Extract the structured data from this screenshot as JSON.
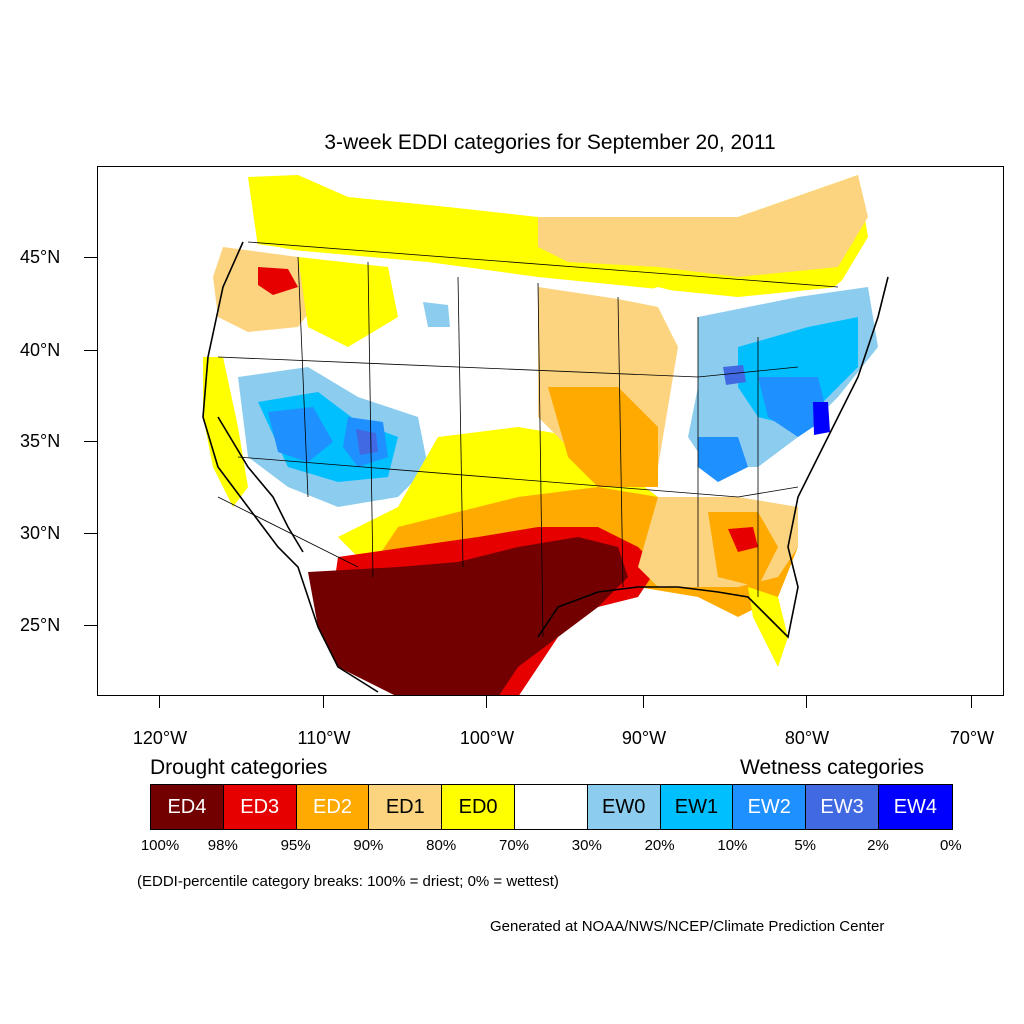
{
  "title": "3-week EDDI categories for September 20, 2011",
  "lat_labels": [
    "45°N",
    "40°N",
    "35°N",
    "30°N",
    "25°N"
  ],
  "lon_labels": [
    "120°W",
    "110°W",
    "100°W",
    "90°W",
    "80°W",
    "70°W"
  ],
  "legend": {
    "drought_heading": "Drought categories",
    "wetness_heading": "Wetness categories",
    "categories": [
      {
        "label": "ED4",
        "color": "#730000",
        "text_color": "#ffffff"
      },
      {
        "label": "ED3",
        "color": "#e60000",
        "text_color": "#ffffff"
      },
      {
        "label": "ED2",
        "color": "#ffaa00",
        "text_color": "#ffffff"
      },
      {
        "label": "ED1",
        "color": "#fcd37f",
        "text_color": "#000000"
      },
      {
        "label": "ED0",
        "color": "#ffff00",
        "text_color": "#000000"
      },
      {
        "label": "",
        "color": "#ffffff",
        "text_color": "#000000"
      },
      {
        "label": "EW0",
        "color": "#8ccdef",
        "text_color": "#000000"
      },
      {
        "label": "EW1",
        "color": "#00bfff",
        "text_color": "#000000"
      },
      {
        "label": "EW2",
        "color": "#1e90ff",
        "text_color": "#ffffff"
      },
      {
        "label": "EW3",
        "color": "#4169e1",
        "text_color": "#ffffff"
      },
      {
        "label": "EW4",
        "color": "#0000ff",
        "text_color": "#ffffff"
      }
    ],
    "percentiles": [
      "100%",
      "98%",
      "95%",
      "90%",
      "80%",
      "70%",
      "30%",
      "20%",
      "10%",
      "5%",
      "2%",
      "0%"
    ]
  },
  "note": "(EDDI-percentile category breaks: 100% = driest; 0% = wettest)",
  "credit": "Generated at NOAA/NWS/NCEP/Climate Prediction Center"
}
